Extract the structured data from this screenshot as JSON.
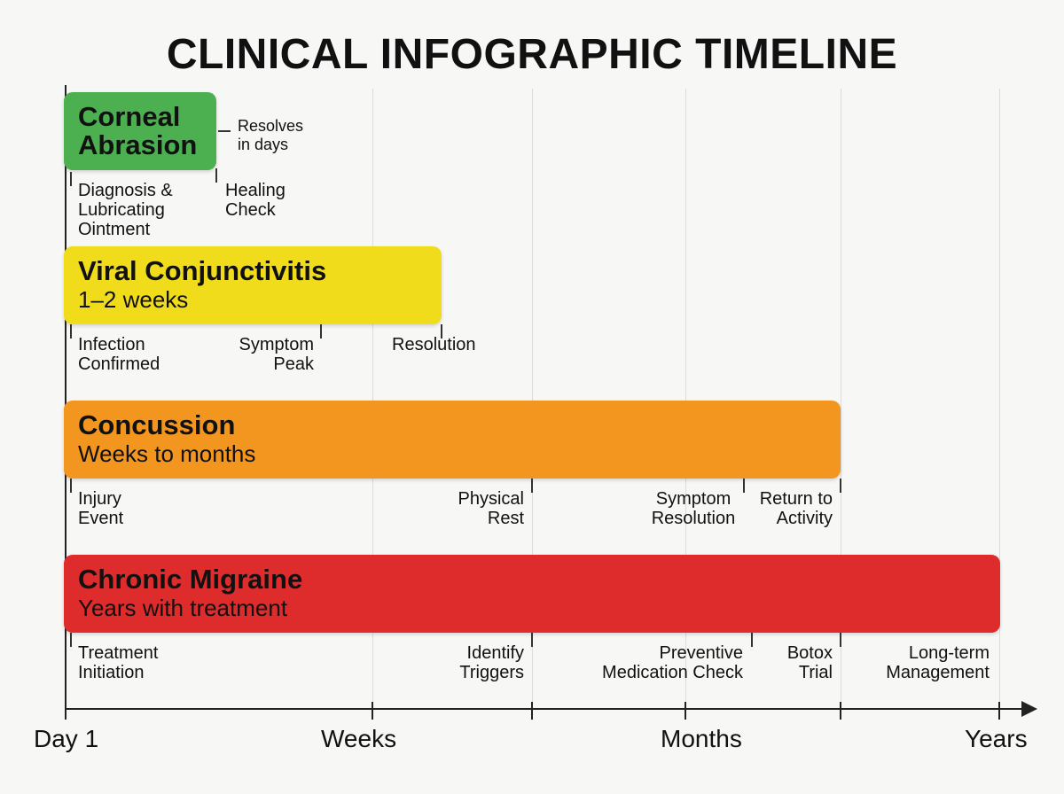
{
  "title": "CLINICAL INFOGRAPHIC TIMELINE",
  "axis": {
    "labels": [
      "Day 1",
      "Weeks",
      "Months",
      "Years"
    ]
  },
  "conditions": [
    {
      "name": "Corneal Abrasion",
      "note": "Resolves in days",
      "milestones": [
        "Diagnosis & Lubricating Ointment",
        "Healing Check"
      ]
    },
    {
      "name": "Viral Conjunctivitis",
      "duration": "1–2 weeks",
      "milestones": [
        "Infection Confirmed",
        "Symptom Peak",
        "Resolution"
      ]
    },
    {
      "name": "Concussion",
      "duration": "Weeks to months",
      "milestones": [
        "Injury Event",
        "Physical Rest",
        "Symptom Resolution",
        "Return to Activity"
      ]
    },
    {
      "name": "Chronic Migraine",
      "duration": "Years with treatment",
      "milestones": [
        "Treatment Initiation",
        "Identify Triggers",
        "Preventive Medication Check",
        "Botox Trial",
        "Long-term Management"
      ]
    }
  ]
}
